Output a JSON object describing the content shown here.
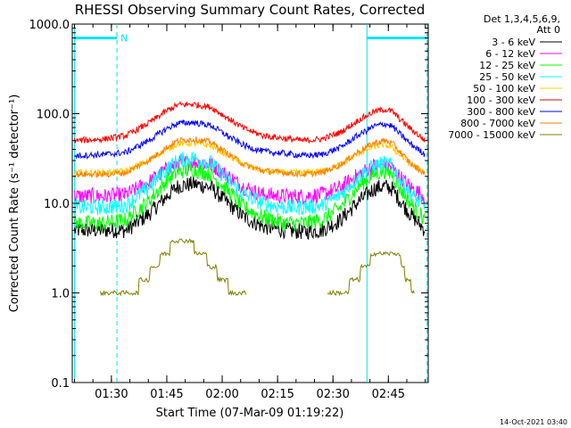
{
  "chart_data": {
    "type": "line",
    "title": "RHESSI Observing Summary Count Rates, Corrected",
    "xlabel": "Start Time (07-Mar-09 01:19:22)",
    "ylabel": "Corrected Count Rate (s⁻¹ detector⁻¹)",
    "y_scale": "log",
    "ylim": [
      0.1,
      1000.0
    ],
    "xlim_minutes": [
      79.4,
      175.8
    ],
    "x_ticks": [
      {
        "minutes": 90,
        "label": "01:30"
      },
      {
        "minutes": 105,
        "label": "01:45"
      },
      {
        "minutes": 120,
        "label": "02:00"
      },
      {
        "minutes": 135,
        "label": "02:15"
      },
      {
        "minutes": 150,
        "label": "02:30"
      },
      {
        "minutes": 165,
        "label": "02:45"
      }
    ],
    "y_ticks": [
      {
        "value": 0.1,
        "label": "0.1"
      },
      {
        "value": 1.0,
        "label": "1.0"
      },
      {
        "value": 10.0,
        "label": "10.0"
      },
      {
        "value": 100.0,
        "label": "100.0"
      },
      {
        "value": 1000.0,
        "label": "1000.0"
      }
    ],
    "legend_header": [
      "Det 1,3,4,5,6,9,",
      "Att 0"
    ],
    "legend_position": "outside-right",
    "series": [
      {
        "name": "3 - 6 keV",
        "color": "#000000",
        "x_minutes": [
          80,
          88,
          94,
          100,
          105,
          108,
          112,
          117,
          121,
          126,
          131,
          137,
          142,
          147,
          152,
          157,
          161,
          164,
          166,
          168,
          171,
          175
        ],
        "values": [
          5.0,
          5.0,
          5.0,
          7.5,
          12.0,
          15.5,
          16.5,
          15.0,
          10.5,
          7.0,
          5.5,
          5.0,
          4.8,
          5.0,
          6.5,
          10.5,
          14.5,
          15.5,
          14.5,
          11.0,
          7.5,
          5.0
        ]
      },
      {
        "name": "6 - 12 keV",
        "color": "#ff00ff",
        "x_minutes": [
          80,
          88,
          94,
          100,
          105,
          108,
          112,
          117,
          121,
          126,
          131,
          137,
          142,
          147,
          152,
          157,
          161,
          164,
          166,
          168,
          171,
          175
        ],
        "values": [
          12.0,
          12.0,
          12.5,
          17.0,
          24.0,
          28.0,
          29.0,
          27.0,
          21.0,
          15.0,
          12.5,
          12.0,
          12.0,
          12.5,
          15.0,
          21.0,
          26.0,
          27.0,
          25.0,
          20.0,
          15.0,
          12.0
        ]
      },
      {
        "name": "12 - 25 keV",
        "color": "#00ff00",
        "x_minutes": [
          80,
          88,
          94,
          100,
          105,
          108,
          112,
          117,
          121,
          126,
          131,
          137,
          142,
          147,
          152,
          157,
          161,
          164,
          166,
          168,
          171,
          175
        ],
        "values": [
          6.0,
          6.0,
          6.5,
          10.5,
          18.0,
          22.5,
          24.0,
          21.0,
          14.5,
          9.0,
          7.0,
          6.0,
          6.0,
          6.5,
          9.0,
          15.5,
          21.0,
          23.0,
          21.0,
          15.0,
          10.0,
          6.5
        ]
      },
      {
        "name": "25 - 50 keV",
        "color": "#00ffff",
        "x_minutes": [
          80,
          88,
          94,
          100,
          105,
          108,
          112,
          117,
          121,
          126,
          131,
          137,
          142,
          147,
          152,
          157,
          161,
          164,
          166,
          168,
          171,
          175
        ],
        "values": [
          9.0,
          9.0,
          9.5,
          15.0,
          24.0,
          30.0,
          32.0,
          28.0,
          19.0,
          12.5,
          10.0,
          9.0,
          9.0,
          9.5,
          12.5,
          20.0,
          26.0,
          28.0,
          26.0,
          19.0,
          13.0,
          9.0
        ]
      },
      {
        "name": "50 - 100 keV",
        "color": "#ffcc00",
        "x_minutes": [
          80,
          88,
          94,
          100,
          105,
          108,
          112,
          117,
          121,
          126,
          131,
          137,
          142,
          147,
          152,
          157,
          161,
          164,
          166,
          168,
          171,
          175
        ],
        "values": [
          22.0,
          22.0,
          23.0,
          30.0,
          40.0,
          46.0,
          47.0,
          44.0,
          35.0,
          27.0,
          23.0,
          22.0,
          22.0,
          23.0,
          27.0,
          36.0,
          43.0,
          45.0,
          42.0,
          35.0,
          27.0,
          22.0
        ]
      },
      {
        "name": "100 - 300 keV",
        "color": "#ff0000",
        "x_minutes": [
          80,
          88,
          94,
          100,
          105,
          108,
          112,
          117,
          121,
          126,
          131,
          137,
          142,
          147,
          152,
          157,
          161,
          164,
          166,
          168,
          171,
          175
        ],
        "values": [
          50.0,
          52.0,
          57.0,
          78.0,
          108.0,
          125.0,
          128.0,
          118.0,
          92.0,
          68.0,
          57.0,
          53.0,
          50.0,
          52.0,
          62.0,
          85.0,
          105.0,
          112.0,
          106.0,
          88.0,
          68.0,
          50.0
        ]
      },
      {
        "name": "300 - 800 keV",
        "color": "#0000ff",
        "x_minutes": [
          80,
          88,
          94,
          100,
          105,
          108,
          112,
          117,
          121,
          126,
          131,
          137,
          142,
          147,
          152,
          157,
          161,
          164,
          166,
          168,
          171,
          175
        ],
        "values": [
          34.0,
          35.0,
          37.0,
          50.0,
          68.0,
          78.0,
          80.0,
          74.0,
          58.0,
          44.0,
          38.0,
          36.0,
          34.0,
          35.0,
          42.0,
          58.0,
          72.0,
          77.0,
          73.0,
          60.0,
          46.0,
          35.0
        ]
      },
      {
        "name": "800 - 7000 keV",
        "color": "#ff8000",
        "x_minutes": [
          80,
          88,
          94,
          100,
          105,
          108,
          112,
          117,
          121,
          126,
          131,
          137,
          142,
          147,
          152,
          157,
          161,
          164,
          166,
          168,
          171,
          175
        ],
        "values": [
          21.0,
          21.0,
          22.0,
          30.0,
          42.0,
          50.0,
          52.0,
          48.0,
          37.0,
          27.0,
          23.0,
          22.0,
          21.0,
          22.0,
          27.0,
          38.0,
          47.0,
          50.0,
          47.0,
          38.0,
          28.0,
          21.0
        ]
      },
      {
        "name": "7000 - 15000 keV",
        "color": "#808000",
        "x_minutes": [
          87,
          90,
          93,
          96,
          99,
          102,
          105,
          108,
          111,
          114,
          117,
          120,
          123,
          126,
          149,
          153,
          156,
          159,
          162,
          165,
          168,
          170,
          172
        ],
        "values": [
          1.0,
          1.0,
          1.0,
          1.0,
          1.4,
          2.0,
          3.0,
          3.8,
          3.5,
          3.0,
          2.0,
          1.4,
          1.0,
          1.0,
          1.0,
          1.0,
          1.4,
          2.0,
          3.0,
          3.0,
          2.5,
          1.4,
          1.0
        ]
      }
    ],
    "annotations": {
      "bar_label": "N",
      "bar_color": "#00e5ee",
      "night_bars": [
        [
          80,
          91.5
        ],
        [
          159.2,
          175.5
        ]
      ],
      "solid_vlines": [
        80,
        159.2
      ],
      "dashed_vlines": [
        91.5,
        175.5
      ]
    },
    "footer": "14-Oct-2021 03:40"
  }
}
